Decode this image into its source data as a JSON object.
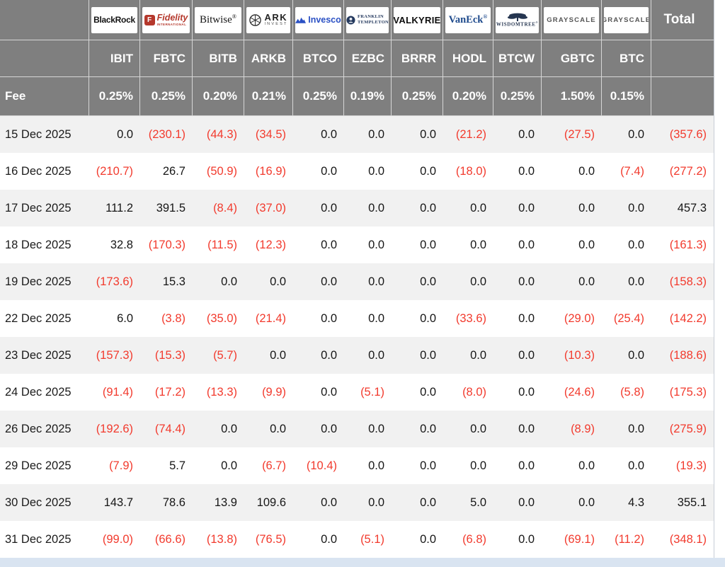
{
  "colors": {
    "header_bg": "#7f7f7f",
    "negative": "#f23a2d",
    "positive_text": "#161616",
    "stripe": "#f1f1f1",
    "page_bottom_strip": "#d9e4f1"
  },
  "brand_colors": {
    "fidelity": "#b5382c",
    "invesco": "#2a50c4",
    "franklin": "#24395e",
    "vaneck": "#1e4a8c",
    "wisdomtree": "#253550",
    "grayscale": "#555555"
  },
  "chart_data": {
    "type": "table",
    "fee_row_label": "Fee",
    "total_column_label": "Total",
    "columns": [
      {
        "brand": "BlackRock",
        "ticker": "IBIT",
        "fee": "0.25%"
      },
      {
        "brand": "Fidelity",
        "brand_sub": "INTERNATIONAL",
        "ticker": "FBTC",
        "fee": "0.25%"
      },
      {
        "brand": "Bitwise",
        "ticker": "BITB",
        "fee": "0.20%"
      },
      {
        "brand": "ARK Invest",
        "ticker": "ARKB",
        "fee": "0.21%"
      },
      {
        "brand": "Invesco",
        "ticker": "BTCO",
        "fee": "0.25%"
      },
      {
        "brand": "Franklin Templeton",
        "ticker": "EZBC",
        "fee": "0.19%"
      },
      {
        "brand": "Valkyrie",
        "ticker": "BRRR",
        "fee": "0.25%"
      },
      {
        "brand": "VanEck",
        "ticker": "HODL",
        "fee": "0.20%"
      },
      {
        "brand": "WisdomTree",
        "ticker": "BTCW",
        "fee": "0.25%"
      },
      {
        "brand": "Grayscale",
        "ticker": "GBTC",
        "fee": "1.50%"
      },
      {
        "brand": "Grayscale",
        "ticker": "BTC",
        "fee": "0.15%"
      }
    ],
    "rows": [
      {
        "date": "15 Dec 2025",
        "values": [
          "0.0",
          "(230.1)",
          "(44.3)",
          "(34.5)",
          "0.0",
          "0.0",
          "0.0",
          "(21.2)",
          "0.0",
          "(27.5)",
          "0.0"
        ],
        "total": "(357.6)"
      },
      {
        "date": "16 Dec 2025",
        "values": [
          "(210.7)",
          "26.7",
          "(50.9)",
          "(16.9)",
          "0.0",
          "0.0",
          "0.0",
          "(18.0)",
          "0.0",
          "0.0",
          "(7.4)"
        ],
        "total": "(277.2)"
      },
      {
        "date": "17 Dec 2025",
        "values": [
          "111.2",
          "391.5",
          "(8.4)",
          "(37.0)",
          "0.0",
          "0.0",
          "0.0",
          "0.0",
          "0.0",
          "0.0",
          "0.0"
        ],
        "total": "457.3"
      },
      {
        "date": "18 Dec 2025",
        "values": [
          "32.8",
          "(170.3)",
          "(11.5)",
          "(12.3)",
          "0.0",
          "0.0",
          "0.0",
          "0.0",
          "0.0",
          "0.0",
          "0.0"
        ],
        "total": "(161.3)"
      },
      {
        "date": "19 Dec 2025",
        "values": [
          "(173.6)",
          "15.3",
          "0.0",
          "0.0",
          "0.0",
          "0.0",
          "0.0",
          "0.0",
          "0.0",
          "0.0",
          "0.0"
        ],
        "total": "(158.3)"
      },
      {
        "date": "22 Dec 2025",
        "values": [
          "6.0",
          "(3.8)",
          "(35.0)",
          "(21.4)",
          "0.0",
          "0.0",
          "0.0",
          "(33.6)",
          "0.0",
          "(29.0)",
          "(25.4)"
        ],
        "total": "(142.2)"
      },
      {
        "date": "23 Dec 2025",
        "values": [
          "(157.3)",
          "(15.3)",
          "(5.7)",
          "0.0",
          "0.0",
          "0.0",
          "0.0",
          "0.0",
          "0.0",
          "(10.3)",
          "0.0"
        ],
        "total": "(188.6)"
      },
      {
        "date": "24 Dec 2025",
        "values": [
          "(91.4)",
          "(17.2)",
          "(13.3)",
          "(9.9)",
          "0.0",
          "(5.1)",
          "0.0",
          "(8.0)",
          "0.0",
          "(24.6)",
          "(5.8)"
        ],
        "total": "(175.3)"
      },
      {
        "date": "26 Dec 2025",
        "values": [
          "(192.6)",
          "(74.4)",
          "0.0",
          "0.0",
          "0.0",
          "0.0",
          "0.0",
          "0.0",
          "0.0",
          "(8.9)",
          "0.0"
        ],
        "total": "(275.9)"
      },
      {
        "date": "29 Dec 2025",
        "values": [
          "(7.9)",
          "5.7",
          "0.0",
          "(6.7)",
          "(10.4)",
          "0.0",
          "0.0",
          "0.0",
          "0.0",
          "0.0",
          "0.0"
        ],
        "total": "(19.3)"
      },
      {
        "date": "30 Dec 2025",
        "values": [
          "143.7",
          "78.6",
          "13.9",
          "109.6",
          "0.0",
          "0.0",
          "0.0",
          "5.0",
          "0.0",
          "0.0",
          "4.3"
        ],
        "total": "355.1"
      },
      {
        "date": "31 Dec 2025",
        "values": [
          "(99.0)",
          "(66.6)",
          "(13.8)",
          "(76.5)",
          "0.0",
          "(5.1)",
          "0.0",
          "(6.8)",
          "0.0",
          "(69.1)",
          "(11.2)"
        ],
        "total": "(348.1)"
      }
    ]
  }
}
